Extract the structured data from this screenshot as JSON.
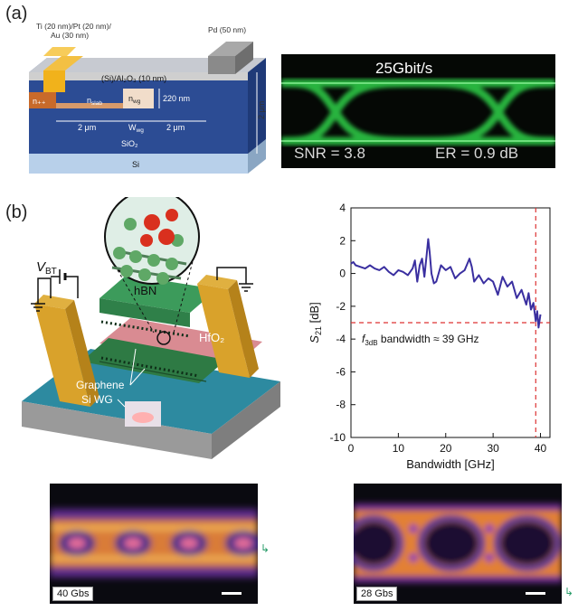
{
  "panels": {
    "a": {
      "label": "(a)"
    },
    "b": {
      "label": "(b)"
    }
  },
  "device_a": {
    "ti_stack": "Ti (20 nm)/Pt (20 nm)/",
    "au": "Au (30 nm)",
    "pd": "Pd (50 nm)",
    "oxide": "(Si)/Al₂O₃ (10 nm)",
    "npp": "n₊₊",
    "nslab": "n",
    "nslab_sub": "slab",
    "nwg": "n",
    "nwg_sub": "wg",
    "h220": "220 nm",
    "w_left": "2 μm",
    "wwg": "W",
    "wwg_sub": "wg",
    "w_right": "2 μm",
    "sio2": "SiO₂",
    "si": "Si",
    "h2um": "2 μm"
  },
  "eye_a": {
    "rate": "25Gbit/s",
    "snr": "SNR = 3.8",
    "er": "ER = 0.9 dB"
  },
  "device_b": {
    "vbt": "V",
    "vbt_sub": "BT",
    "hbn": "hBN",
    "hfo2": "HfO₂",
    "graphene": "Graphene",
    "siwg": "Si WG"
  },
  "chart_data": {
    "type": "line",
    "xlabel": "Bandwidth [GHz]",
    "ylabel_main": "S",
    "ylabel_sub": "21",
    "ylabel_unit": " [dB]",
    "xlim": [
      0,
      42
    ],
    "ylim": [
      -10,
      4
    ],
    "xticks": [
      0,
      10,
      20,
      30,
      40
    ],
    "yticks": [
      4,
      2,
      0,
      -2,
      -4,
      -6,
      -8,
      -10
    ],
    "annotation_main": "f",
    "annotation_sub": "3dB",
    "annotation_rest": " bandwidth ≈ 39 GHz",
    "hline_y": -3,
    "vline_x": 39,
    "series_color": "#3a2fa0",
    "x": [
      0,
      0.5,
      1,
      2,
      3,
      4,
      5,
      6,
      7,
      8,
      9,
      10,
      11,
      12,
      13,
      13.5,
      14,
      14.5,
      15,
      15.5,
      16,
      16.3,
      16.6,
      17,
      17.5,
      18,
      19,
      20,
      21,
      22,
      23,
      24,
      25,
      25.5,
      26,
      27,
      28,
      29,
      30,
      31,
      32,
      33,
      34,
      35,
      36,
      37,
      37.5,
      38,
      38.5,
      39,
      39.3,
      39.6,
      40
    ],
    "y": [
      0.6,
      0.7,
      0.5,
      0.4,
      0.3,
      0.5,
      0.3,
      0.2,
      0.4,
      0.1,
      -0.1,
      0.2,
      0.1,
      -0.1,
      0.3,
      0.8,
      -0.5,
      0.5,
      0.9,
      -0.2,
      1.2,
      2.1,
      1.3,
      0.0,
      -0.6,
      -0.5,
      0.5,
      0.2,
      0.4,
      -0.3,
      0.0,
      0.2,
      0.9,
      0.4,
      -0.5,
      -0.1,
      -0.6,
      -0.3,
      -0.5,
      -1.3,
      -0.2,
      -0.8,
      -0.5,
      -1.5,
      -1.0,
      -1.9,
      -1.2,
      -2.2,
      -1.8,
      -2.9,
      -2.3,
      -3.3,
      -2.5
    ]
  },
  "eye_b1": {
    "caption": "40 Gbs"
  },
  "eye_b2": {
    "caption": "28 Gbs"
  }
}
